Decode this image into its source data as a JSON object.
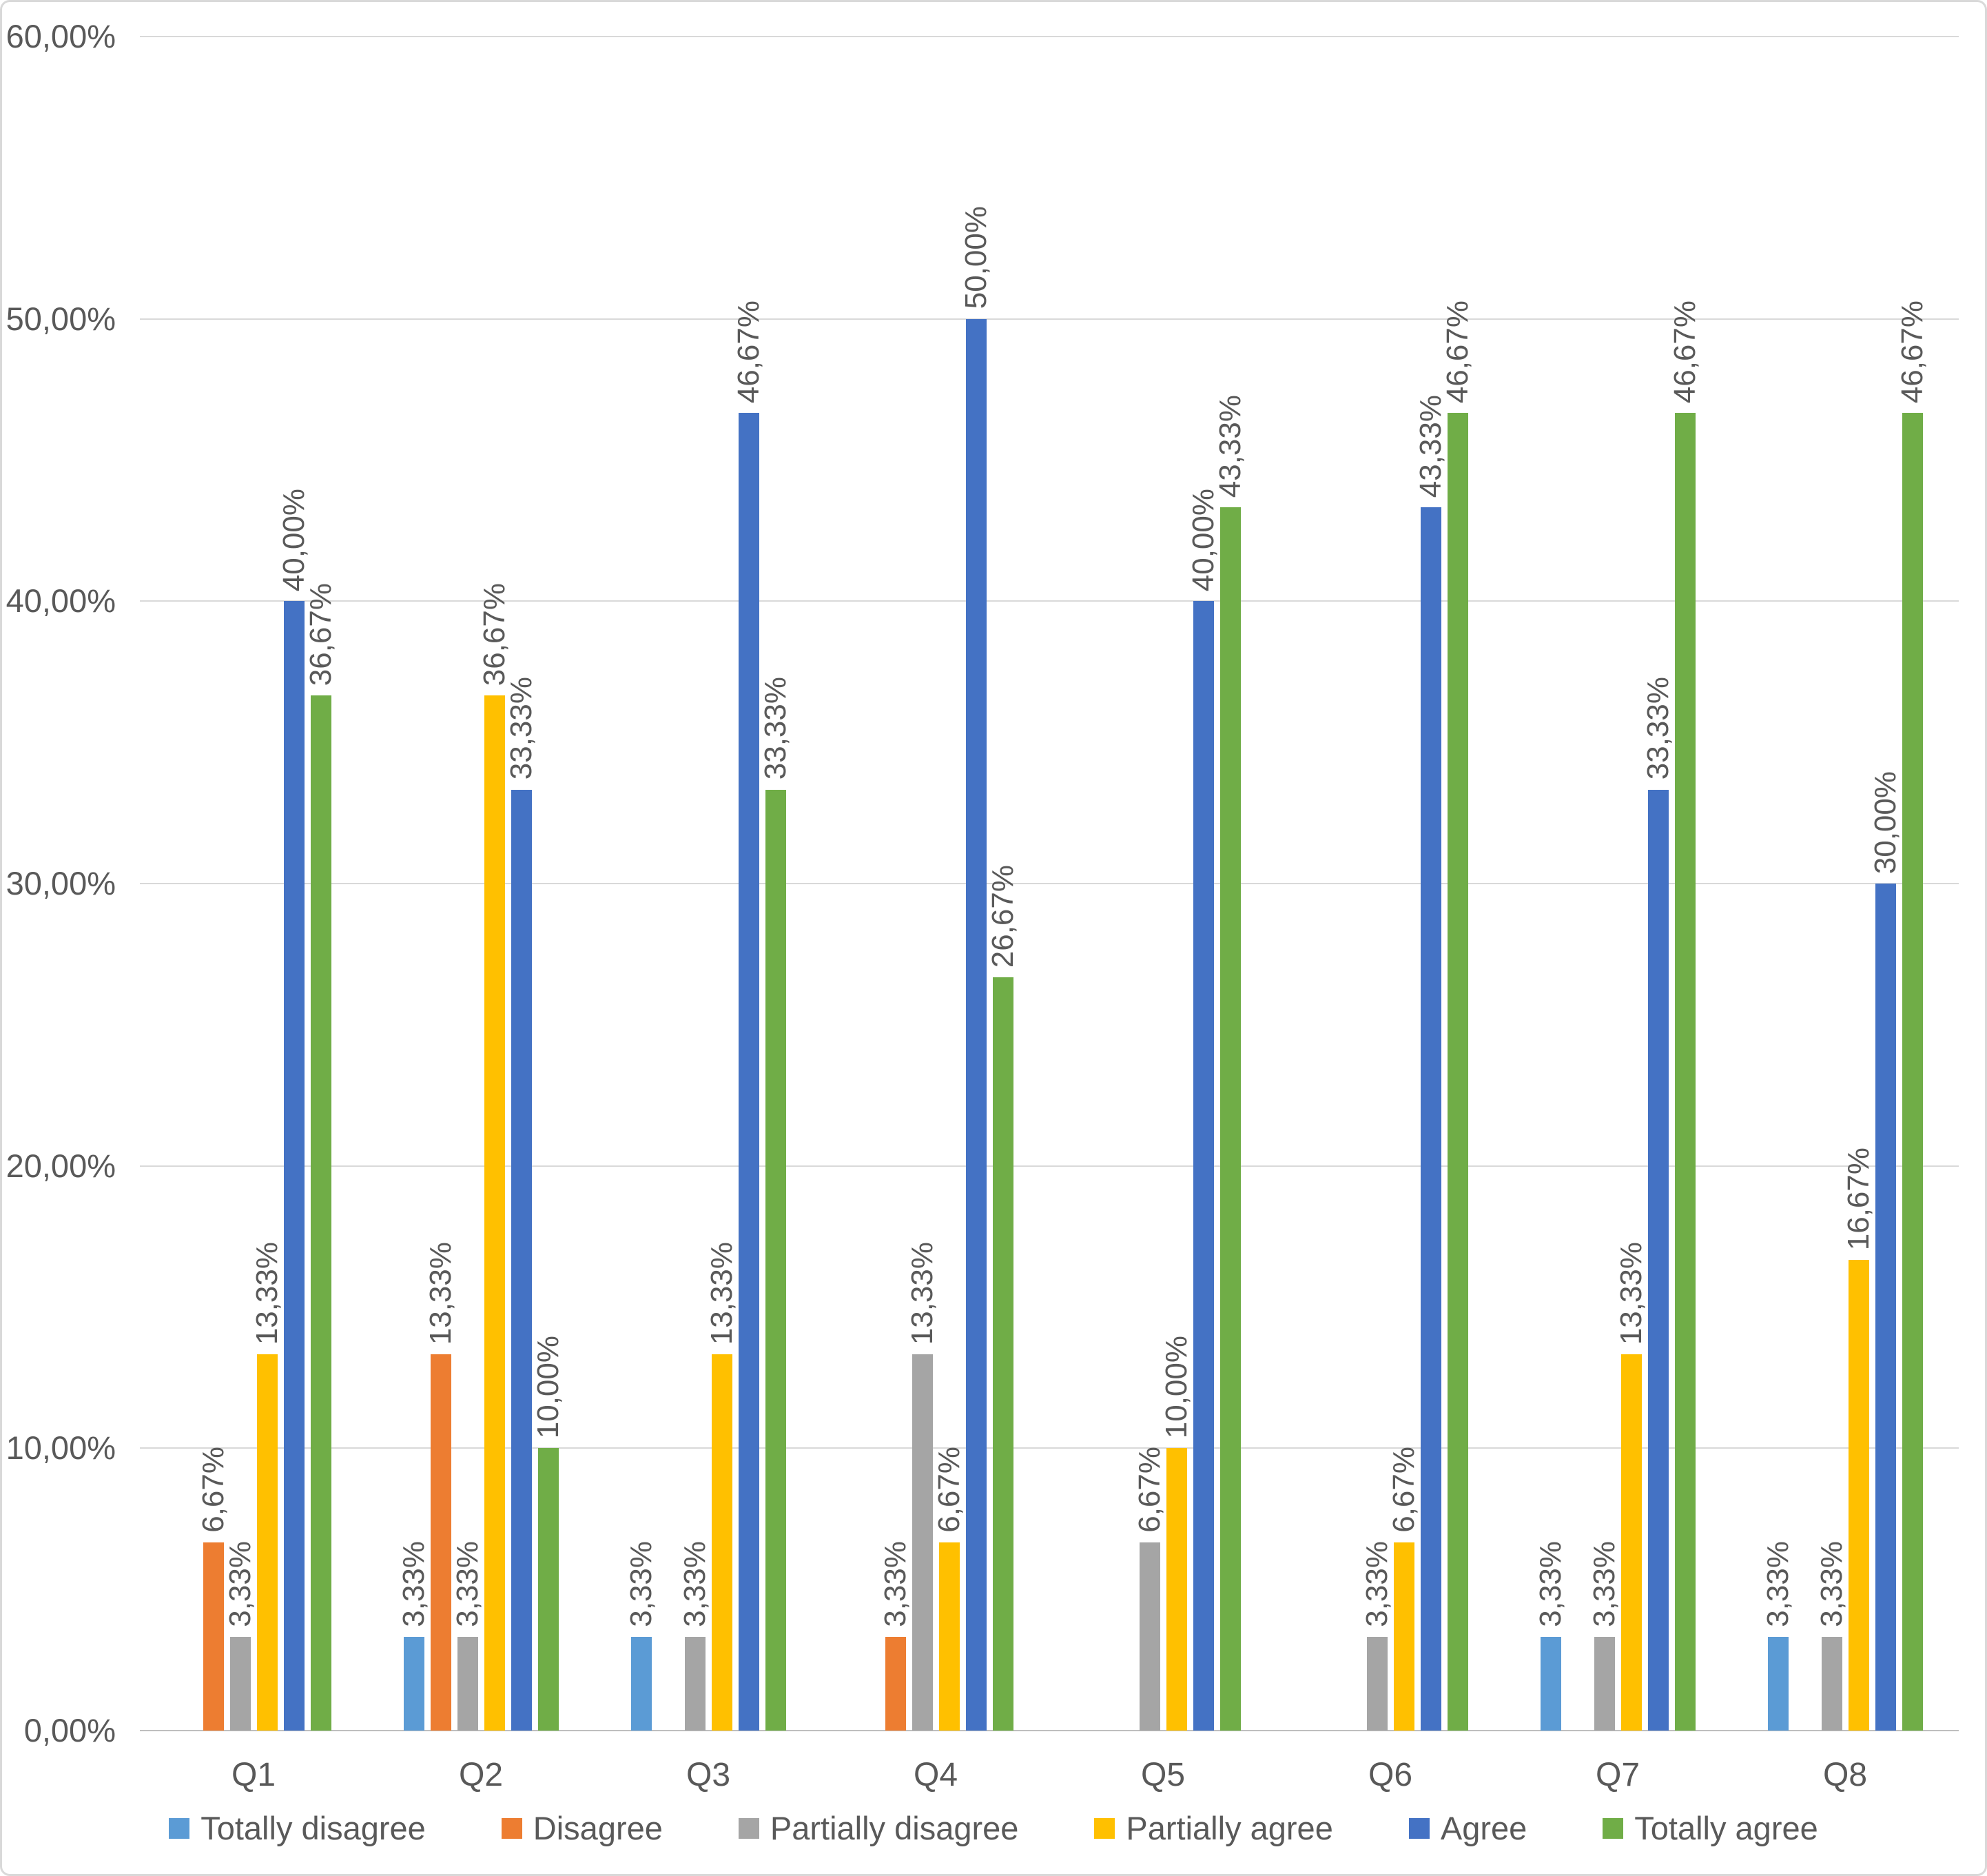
{
  "chart_data": {
    "type": "bar",
    "title": "",
    "categories": [
      "Q1",
      "Q2",
      "Q3",
      "Q4",
      "Q5",
      "Q6",
      "Q7",
      "Q8"
    ],
    "series": [
      {
        "name": "Totally disagree",
        "color": "#5B9BD5",
        "values": [
          0,
          3.33,
          3.33,
          0,
          0,
          0,
          3.33,
          3.33
        ],
        "labels": [
          "",
          "3,33%",
          "3,33%",
          "",
          "",
          "",
          "3,33%",
          "3,33%"
        ]
      },
      {
        "name": "Disagree",
        "color": "#ED7D31",
        "values": [
          6.67,
          13.33,
          0,
          3.33,
          0,
          0,
          0,
          0
        ],
        "labels": [
          "6,67%",
          "13,33%",
          "",
          "3,33%",
          "",
          "",
          "",
          ""
        ]
      },
      {
        "name": "Partially disagree",
        "color": "#A5A5A5",
        "values": [
          3.33,
          3.33,
          3.33,
          13.33,
          6.67,
          3.33,
          3.33,
          3.33
        ],
        "labels": [
          "3,33%",
          "3,33%",
          "3,33%",
          "13,33%",
          "6,67%",
          "3,33%",
          "3,33%",
          "3,33%"
        ]
      },
      {
        "name": "Partially agree",
        "color": "#FFC000",
        "values": [
          13.33,
          36.67,
          13.33,
          6.67,
          10.0,
          6.67,
          13.33,
          16.67
        ],
        "labels": [
          "13,33%",
          "36,67%",
          "13,33%",
          "6,67%",
          "10,00%",
          "6,67%",
          "13,33%",
          "16,67%"
        ]
      },
      {
        "name": "Agree",
        "color": "#4472C4",
        "values": [
          40.0,
          33.33,
          46.67,
          50.0,
          40.0,
          43.33,
          33.33,
          30.0
        ],
        "labels": [
          "40,00%",
          "33,33%",
          "46,67%",
          "50,00%",
          "40,00%",
          "43,33%",
          "33,33%",
          "30,00%"
        ]
      },
      {
        "name": "Totally agree",
        "color": "#70AD47",
        "values": [
          36.67,
          10.0,
          33.33,
          26.67,
          43.33,
          46.67,
          46.67,
          46.67
        ],
        "labels": [
          "36,67%",
          "10,00%",
          "33,33%",
          "26,67%",
          "43,33%",
          "46,67%",
          "46,67%",
          "46,67%"
        ]
      }
    ],
    "y_axis": {
      "ticks": [
        "0,00%",
        "10,00%",
        "20,00%",
        "30,00%",
        "40,00%",
        "50,00%",
        "60,00%"
      ],
      "min": 0,
      "max": 60,
      "step": 10
    },
    "grid": true,
    "legend_position": "bottom",
    "value_format": "comma-decimal-percent"
  },
  "styles": {
    "text_color": "#595959",
    "gridline_color": "#D9D9D9",
    "axis_line_color": "#BFBFBF",
    "chart_border_color": "#D9D9D9",
    "background_color": "#FFFFFF"
  }
}
